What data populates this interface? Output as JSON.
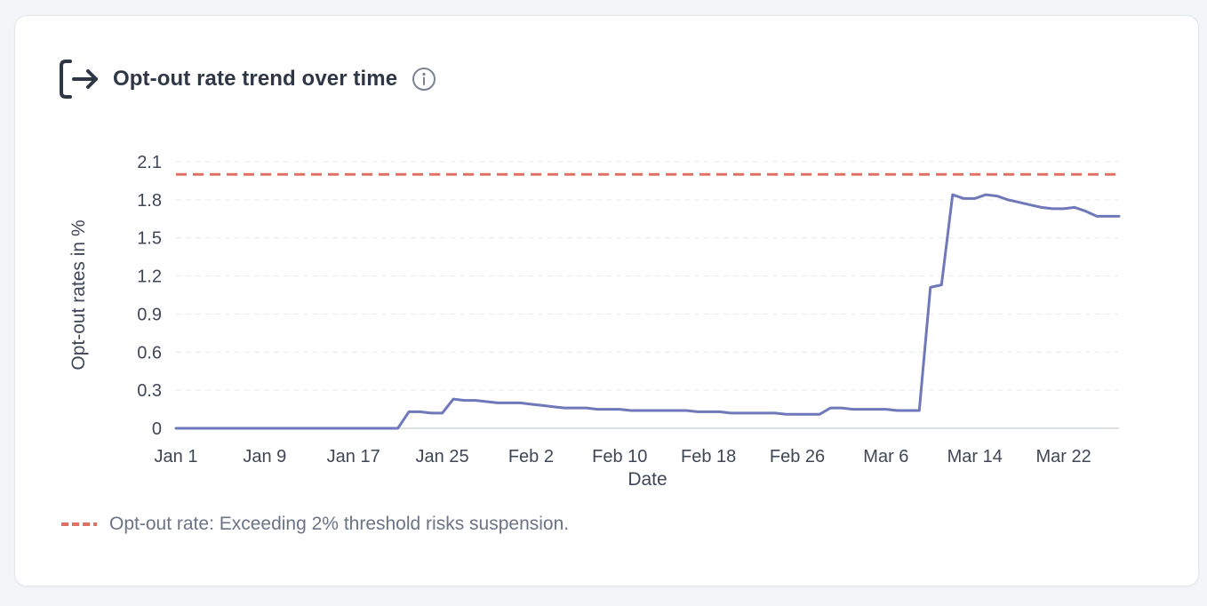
{
  "header": {
    "title": "Opt-out rate trend over time",
    "icon": "exit-arrow-icon",
    "info_icon": "info-icon"
  },
  "legend": {
    "label": "Opt-out rate: Exceeding 2% threshold risks suspension."
  },
  "colors": {
    "series": "#6f78b8",
    "threshold": "#e07065",
    "grid": "#e6e9ee",
    "axis": "#d3d7de",
    "title": "#2f3645"
  },
  "chart_data": {
    "type": "line",
    "xlabel": "Date",
    "ylabel": "Opt-out rates in %",
    "x_ticks": [
      "Jan 1",
      "Jan 9",
      "Jan 17",
      "Jan 25",
      "Feb 2",
      "Feb 10",
      "Feb 18",
      "Feb 26",
      "Mar 6",
      "Mar 14",
      "Mar 22"
    ],
    "y_ticks": [
      "0",
      "0.3",
      "0.6",
      "0.9",
      "1.2",
      "1.5",
      "1.8",
      "2.1"
    ],
    "ylim": [
      0,
      2.1
    ],
    "x_range": [
      "2025-01-01",
      "2025-03-27"
    ],
    "grid": "horizontal dashed",
    "threshold": {
      "y": 2.0,
      "style": "dashed"
    },
    "series": [
      {
        "x": [
          "2025-01-01",
          "2025-01-03",
          "2025-01-05",
          "2025-01-07",
          "2025-01-09",
          "2025-01-11",
          "2025-01-13",
          "2025-01-15",
          "2025-01-17",
          "2025-01-19",
          "2025-01-21",
          "2025-01-22",
          "2025-01-23",
          "2025-01-24",
          "2025-01-25",
          "2025-01-26",
          "2025-01-27",
          "2025-01-28",
          "2025-01-29",
          "2025-01-30",
          "2025-01-31",
          "2025-02-01",
          "2025-02-02",
          "2025-02-03",
          "2025-02-04",
          "2025-02-05",
          "2025-02-06",
          "2025-02-07",
          "2025-02-08",
          "2025-02-09",
          "2025-02-10",
          "2025-02-11",
          "2025-02-12",
          "2025-02-13",
          "2025-02-14",
          "2025-02-15",
          "2025-02-16",
          "2025-02-17",
          "2025-02-18",
          "2025-02-19",
          "2025-02-20",
          "2025-02-21",
          "2025-02-22",
          "2025-02-23",
          "2025-02-24",
          "2025-02-25",
          "2025-02-26",
          "2025-02-27",
          "2025-02-28",
          "2025-03-01",
          "2025-03-02",
          "2025-03-03",
          "2025-03-04",
          "2025-03-05",
          "2025-03-06",
          "2025-03-07",
          "2025-03-08",
          "2025-03-09",
          "2025-03-10",
          "2025-03-11",
          "2025-03-12",
          "2025-03-13",
          "2025-03-14",
          "2025-03-15",
          "2025-03-16",
          "2025-03-17",
          "2025-03-18",
          "2025-03-19",
          "2025-03-20",
          "2025-03-21",
          "2025-03-22",
          "2025-03-23",
          "2025-03-24",
          "2025-03-25",
          "2025-03-26",
          "2025-03-27"
        ],
        "y": [
          0,
          0,
          0,
          0,
          0,
          0,
          0,
          0,
          0,
          0,
          0,
          0.13,
          0.13,
          0.12,
          0.12,
          0.23,
          0.22,
          0.22,
          0.21,
          0.2,
          0.2,
          0.2,
          0.19,
          0.18,
          0.17,
          0.16,
          0.16,
          0.16,
          0.15,
          0.15,
          0.15,
          0.14,
          0.14,
          0.14,
          0.14,
          0.14,
          0.14,
          0.13,
          0.13,
          0.13,
          0.12,
          0.12,
          0.12,
          0.12,
          0.12,
          0.11,
          0.11,
          0.11,
          0.11,
          0.16,
          0.16,
          0.15,
          0.15,
          0.15,
          0.15,
          0.14,
          0.14,
          0.14,
          1.11,
          1.13,
          1.84,
          1.81,
          1.81,
          1.84,
          1.83,
          1.8,
          1.78,
          1.76,
          1.74,
          1.73,
          1.73,
          1.74,
          1.71,
          1.67,
          1.67,
          1.67
        ]
      }
    ]
  }
}
